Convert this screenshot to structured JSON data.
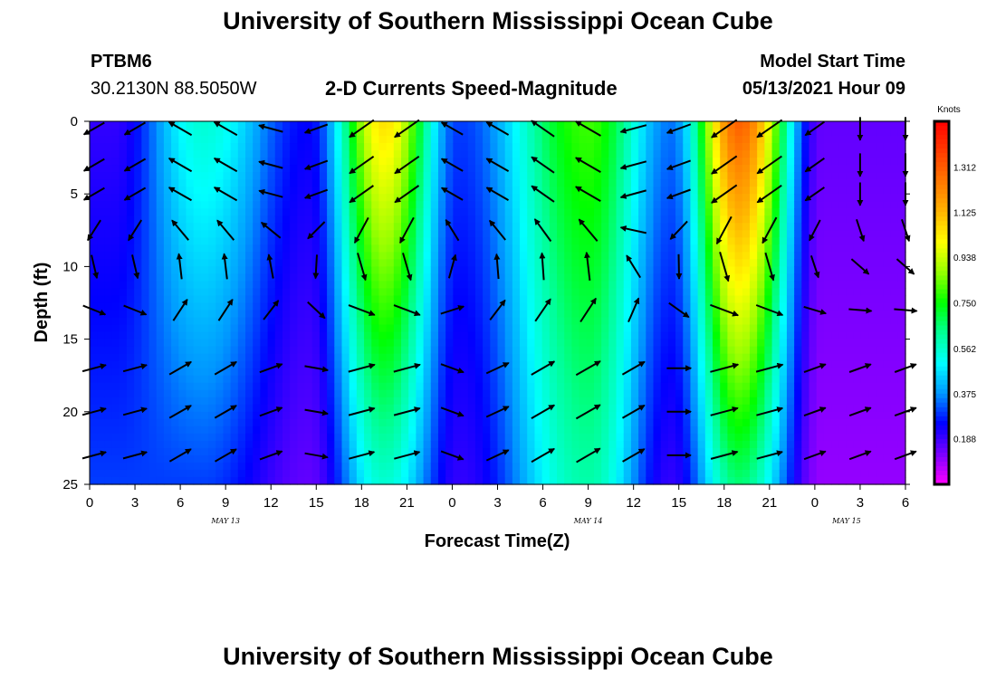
{
  "header": {
    "title": "University of Southern Mississippi Ocean Cube",
    "station_id": "PTBM6",
    "station_coords": "30.2130N  88.5050W",
    "subtitle": "2-D Currents Speed-Magnitude",
    "model_start_label": "Model Start Time",
    "model_start_value": "05/13/2021 Hour 09"
  },
  "footer": {
    "title": "University of Southern Mississippi Ocean Cube"
  },
  "chart_data": {
    "type": "heatmap",
    "title": "2-D Currents Speed-Magnitude",
    "xlabel": "Forecast Time(Z)",
    "ylabel": "Depth (ft)",
    "x_hours_from_first_tick": {
      "min": 0,
      "max": 54
    },
    "x_tick_labels": [
      "0",
      "3",
      "6",
      "9",
      "12",
      "15",
      "18",
      "21",
      "0",
      "3",
      "6",
      "9",
      "12",
      "15",
      "18",
      "21",
      "0",
      "3",
      "6"
    ],
    "date_labels": [
      {
        "text": "MAY 13",
        "at_tick": 3
      },
      {
        "text": "MAY 14",
        "at_tick": 11
      },
      {
        "text": "MAY 15",
        "at_tick": 16.7
      }
    ],
    "y_ticks": [
      0,
      5,
      10,
      15,
      20,
      25
    ],
    "ylim": [
      0,
      25
    ],
    "y_reversed": true,
    "colorbar": {
      "unit_label": "Knots",
      "range": [
        0,
        1.5
      ],
      "tick_values": [
        1.312,
        1.125,
        0.938,
        0.75,
        0.562,
        0.375,
        0.188
      ],
      "tick_labels": [
        "1.312",
        "1.125",
        "0.938",
        "0.750",
        "0.562",
        "0.375",
        "0.188"
      ],
      "colors_low_to_high": [
        "#ff00ff",
        "#7a00ff",
        "#0000ff",
        "#0096ff",
        "#00ffff",
        "#00ff96",
        "#00ff00",
        "#96ff00",
        "#ffff00",
        "#ffb400",
        "#ff7800",
        "#ff3c00",
        "#ff0000"
      ]
    },
    "speed_model": {
      "note": "speed (knots) by time column (hours) and depth (ft); estimated from colors",
      "peaks": [
        {
          "t": 7.5,
          "surface": 0.55,
          "bottom": 0.3
        },
        {
          "t": 19.5,
          "surface": 1.05,
          "bottom": 0.55
        },
        {
          "t": 33.0,
          "surface": 0.8,
          "bottom": 0.6
        },
        {
          "t": 43.0,
          "surface": 1.3,
          "bottom": 0.65
        }
      ],
      "troughs": [
        {
          "t": 1.5,
          "surface": 0.2,
          "bottom": 0.3
        },
        {
          "t": 14.5,
          "surface": 0.25,
          "bottom": 0.15
        },
        {
          "t": 24.5,
          "surface": 0.3,
          "bottom": 0.2
        },
        {
          "t": 38.5,
          "surface": 0.35,
          "bottom": 0.2
        },
        {
          "t": 48.5,
          "surface": 0.15,
          "bottom": 0.1
        }
      ]
    },
    "arrow_grid": {
      "times": [
        0.3,
        3,
        6,
        9,
        12,
        15,
        18,
        21,
        24,
        27,
        30,
        33,
        36,
        39,
        42,
        45,
        48,
        51,
        54
      ],
      "depths": [
        0.5,
        3,
        5,
        7.5,
        10,
        13,
        17,
        20,
        23
      ],
      "surface_directions_deg": [
        240,
        240,
        300,
        300,
        285,
        250,
        235,
        235,
        300,
        300,
        305,
        300,
        255,
        250,
        235,
        235,
        235,
        180,
        180
      ],
      "bottom_directions_deg": [
        75,
        75,
        60,
        60,
        70,
        100,
        75,
        75,
        110,
        65,
        60,
        60,
        60,
        90,
        75,
        75,
        70,
        70,
        70
      ]
    }
  }
}
